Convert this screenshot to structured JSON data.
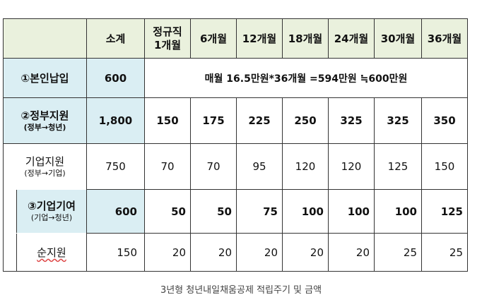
{
  "header": {
    "blank": "",
    "subtotal": "소계",
    "periods": [
      "정규직\n1개월",
      "6개월",
      "12개월",
      "18개월",
      "24개월",
      "30개월",
      "36개월"
    ]
  },
  "rows": {
    "self": {
      "label": "①본인납입",
      "subtotal": "600",
      "note": "매월  16.5만원*36개월 =594만원 ≒600만원"
    },
    "gov": {
      "label": "②정부지원",
      "sublabel": "(정부→청년)",
      "subtotal": "1,800",
      "values": [
        "150",
        "175",
        "225",
        "250",
        "325",
        "325",
        "350"
      ]
    },
    "corp_support": {
      "label": "기업지원",
      "sublabel": "(정부→기업)",
      "subtotal": "750",
      "values": [
        "70",
        "70",
        "95",
        "120",
        "120",
        "125",
        "150"
      ]
    },
    "corp_contrib": {
      "label": "③기업기여",
      "sublabel": "(기업→청년)",
      "subtotal": "600",
      "values": [
        "50",
        "50",
        "75",
        "100",
        "100",
        "100",
        "125"
      ]
    },
    "net": {
      "label": "순지원",
      "subtotal": "150",
      "values": [
        "20",
        "20",
        "20",
        "20",
        "20",
        "25",
        "25"
      ]
    }
  },
  "caption": "3년형 청년내일채움공제 적립주기 및 금액"
}
